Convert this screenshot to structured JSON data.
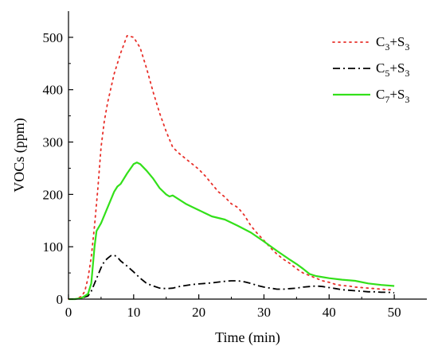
{
  "chart_data": {
    "type": "line",
    "title": "",
    "xlabel": "Time (min)",
    "ylabel": "VOCs (ppm)",
    "xlim": [
      0,
      55
    ],
    "ylim": [
      0,
      550
    ],
    "x_ticks": [
      0,
      10,
      20,
      30,
      40,
      50
    ],
    "y_ticks": [
      0,
      100,
      200,
      300,
      400,
      500
    ],
    "grid": false,
    "legend_position": "top-right",
    "series": [
      {
        "name": "C3+S3",
        "label_parts": [
          {
            "text": "C",
            "sub": false
          },
          {
            "text": "3",
            "sub": true
          },
          {
            "text": "+S",
            "sub": false
          },
          {
            "text": "3",
            "sub": true
          }
        ],
        "color": "#e8302a",
        "style": "dotted",
        "x": [
          0,
          1,
          2,
          2.5,
          3,
          3.5,
          4,
          4.5,
          5,
          5.5,
          6,
          7,
          8,
          9,
          10,
          11,
          12,
          13,
          14,
          15,
          16,
          17,
          18,
          19,
          20,
          21,
          22,
          23,
          24,
          25,
          26,
          27,
          28,
          29,
          30,
          31,
          32,
          33,
          34,
          35,
          36,
          37,
          38,
          39,
          40,
          41,
          42,
          43,
          44,
          45,
          46,
          47,
          48,
          49,
          50
        ],
        "y": [
          0,
          0,
          5,
          15,
          40,
          80,
          140,
          210,
          290,
          340,
          375,
          430,
          470,
          503,
          500,
          480,
          440,
          395,
          355,
          320,
          290,
          278,
          268,
          258,
          248,
          235,
          220,
          205,
          195,
          182,
          175,
          160,
          140,
          125,
          112,
          98,
          86,
          76,
          68,
          58,
          50,
          45,
          40,
          35,
          32,
          28,
          26,
          25,
          23,
          22,
          21,
          20,
          19,
          18,
          18
        ]
      },
      {
        "name": "C5+S3",
        "label_parts": [
          {
            "text": "C",
            "sub": false
          },
          {
            "text": "5",
            "sub": true
          },
          {
            "text": "+S",
            "sub": false
          },
          {
            "text": "3",
            "sub": true
          }
        ],
        "color": "#000000",
        "style": "dashdot",
        "x": [
          0,
          1,
          2,
          3,
          3.5,
          4,
          4.5,
          5,
          5.5,
          6,
          6.5,
          7,
          7.5,
          8,
          9,
          10,
          11,
          12,
          13,
          14,
          15,
          16,
          17,
          18,
          19,
          20,
          22,
          24,
          25,
          26,
          27,
          28,
          29,
          30,
          31,
          32,
          33,
          34,
          35,
          36,
          37,
          38,
          39,
          40,
          41,
          42,
          43,
          44,
          45,
          46,
          47,
          48,
          49,
          50
        ],
        "y": [
          0,
          0,
          2,
          6,
          15,
          30,
          45,
          60,
          72,
          78,
          83,
          84,
          80,
          73,
          63,
          52,
          40,
          30,
          25,
          21,
          20,
          21,
          24,
          26,
          28,
          29,
          31,
          34,
          35,
          35,
          33,
          30,
          26,
          23,
          21,
          19,
          19,
          20,
          21,
          23,
          24,
          25,
          24,
          22,
          20,
          18,
          17,
          16,
          15,
          14,
          14,
          13,
          13,
          12
        ]
      },
      {
        "name": "C7+S3",
        "label_parts": [
          {
            "text": "C",
            "sub": false
          },
          {
            "text": "7",
            "sub": true
          },
          {
            "text": "+S",
            "sub": false
          },
          {
            "text": "3",
            "sub": true
          }
        ],
        "color": "#33e01a",
        "style": "solid",
        "x": [
          0,
          1,
          2,
          3,
          3.5,
          4,
          4.3,
          5,
          6,
          7,
          7.5,
          8,
          9,
          10,
          10.5,
          11,
          12,
          13,
          14,
          15,
          15.5,
          16,
          17,
          18,
          19,
          20,
          22,
          24,
          26,
          28,
          30,
          32,
          34,
          35,
          36,
          37,
          38,
          40,
          42,
          44,
          46,
          48,
          50
        ],
        "y": [
          0,
          0,
          2,
          10,
          30,
          100,
          130,
          145,
          175,
          205,
          215,
          220,
          240,
          258,
          261,
          258,
          245,
          230,
          212,
          200,
          196,
          198,
          190,
          182,
          176,
          170,
          158,
          152,
          140,
          127,
          110,
          92,
          75,
          67,
          58,
          48,
          44,
          40,
          37,
          35,
          30,
          27,
          25
        ]
      }
    ]
  }
}
